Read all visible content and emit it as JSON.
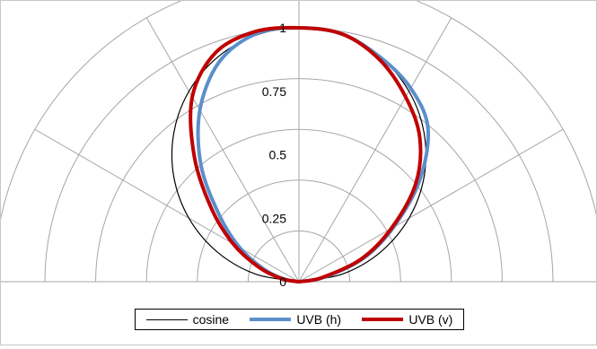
{
  "chart_data": {
    "type": "polar",
    "radial_ticks": [
      "0",
      "0.25",
      "0.5",
      "0.75",
      "1"
    ],
    "rlim": [
      0,
      1.2
    ],
    "angular_range_deg": [
      -90,
      90
    ],
    "series": [
      {
        "name": "cosine",
        "color": "#000000",
        "angles_deg": [
          -90,
          -80,
          -70,
          -60,
          -50,
          -40,
          -30,
          -20,
          -10,
          0,
          10,
          20,
          30,
          40,
          50,
          60,
          70,
          80,
          90
        ],
        "values": [
          0.0,
          0.174,
          0.342,
          0.5,
          0.643,
          0.766,
          0.866,
          0.94,
          0.985,
          1.0,
          0.985,
          0.94,
          0.866,
          0.766,
          0.643,
          0.5,
          0.342,
          0.174,
          0.0
        ]
      },
      {
        "name": "UVB (h)",
        "color": "#5b8fc9",
        "angles_deg": [
          -90,
          -80,
          -70,
          -60,
          -50,
          -40,
          -30,
          -20,
          -10,
          0,
          10,
          20,
          30,
          40,
          50,
          60,
          70,
          80,
          90
        ],
        "values": [
          0.0,
          0.06,
          0.15,
          0.27,
          0.41,
          0.6,
          0.78,
          0.92,
          0.99,
          1.0,
          0.99,
          0.94,
          0.88,
          0.79,
          0.62,
          0.43,
          0.27,
          0.1,
          0.0
        ]
      },
      {
        "name": "UVB (v)",
        "color": "#c00000",
        "angles_deg": [
          -90,
          -80,
          -70,
          -60,
          -50,
          -40,
          -30,
          -20,
          -10,
          0,
          10,
          20,
          30,
          40,
          50,
          60,
          70,
          80,
          90
        ],
        "values": [
          0.0,
          0.07,
          0.17,
          0.3,
          0.45,
          0.64,
          0.84,
          0.96,
          1.0,
          1.0,
          0.99,
          0.93,
          0.84,
          0.74,
          0.6,
          0.42,
          0.26,
          0.09,
          0.0
        ]
      }
    ],
    "legend": {
      "position": "bottom",
      "entries": [
        "cosine",
        "UVB (h)",
        "UVB (v)"
      ]
    }
  }
}
